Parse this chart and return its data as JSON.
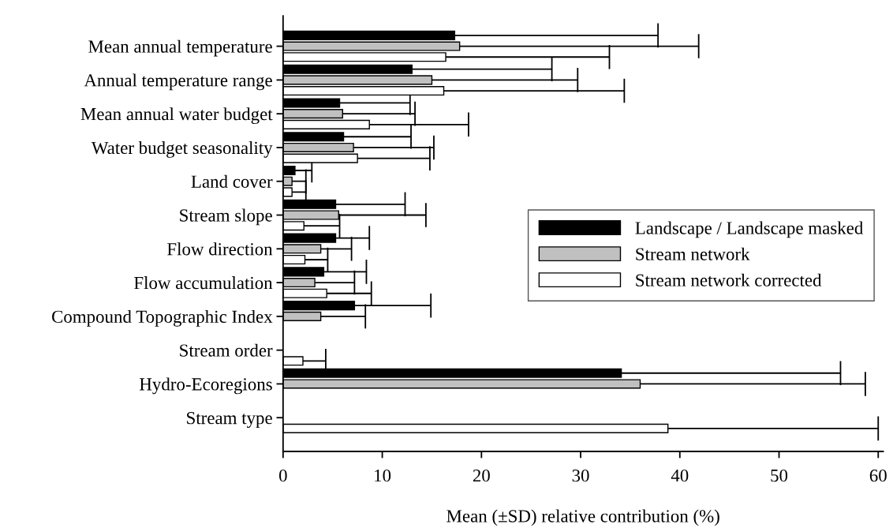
{
  "chart_data": {
    "type": "bar",
    "orientation": "horizontal",
    "xlabel": "Mean (±SD) relative contribution (%)",
    "categories": [
      "Mean annual temperature",
      "Annual temperature range",
      "Mean annual water budget",
      "Water budget seasonality",
      "Land cover",
      "Stream slope",
      "Flow direction",
      "Flow accumulation",
      "Compound Topographic Index",
      "Stream order",
      "Hydro-Ecoregions",
      "Stream type"
    ],
    "series": [
      {
        "name": "Landscape / Landscape masked",
        "color": "#000000",
        "values": [
          17.3,
          13.0,
          5.7,
          6.1,
          1.2,
          5.3,
          5.3,
          4.1,
          7.2,
          null,
          34.1,
          null
        ],
        "errors": [
          [
            17.3,
            37.8
          ],
          [
            13.0,
            27.1
          ],
          [
            5.7,
            12.8
          ],
          [
            6.1,
            12.9
          ],
          [
            1.2,
            2.9
          ],
          [
            5.3,
            12.3
          ],
          [
            5.3,
            8.7
          ],
          [
            4.1,
            8.4
          ],
          [
            7.2,
            14.9
          ],
          null,
          [
            34.1,
            56.2
          ],
          null
        ]
      },
      {
        "name": "Stream network",
        "color": "#c0c0c0",
        "values": [
          17.8,
          15.0,
          6.0,
          7.1,
          0.9,
          5.6,
          3.8,
          3.2,
          3.8,
          null,
          36.0,
          null
        ],
        "errors": [
          [
            17.8,
            41.9
          ],
          [
            15.0,
            29.7
          ],
          [
            6.0,
            13.3
          ],
          [
            7.1,
            15.2
          ],
          [
            0.9,
            2.3
          ],
          [
            5.6,
            14.4
          ],
          [
            3.8,
            6.9
          ],
          [
            3.2,
            7.2
          ],
          [
            3.8,
            8.3
          ],
          null,
          [
            36.0,
            58.7
          ],
          null
        ]
      },
      {
        "name": "Stream network corrected",
        "color": "#ffffff",
        "values": [
          16.4,
          16.2,
          8.7,
          7.5,
          0.9,
          2.1,
          2.2,
          4.4,
          null,
          2.0,
          null,
          38.8
        ],
        "errors": [
          [
            16.4,
            32.9
          ],
          [
            16.2,
            34.4
          ],
          [
            8.7,
            18.7
          ],
          [
            7.5,
            14.8
          ],
          [
            0.9,
            2.3
          ],
          [
            2.1,
            5.7
          ],
          [
            2.2,
            4.5
          ],
          [
            4.4,
            8.9
          ],
          null,
          [
            2.0,
            4.3
          ],
          null,
          [
            38.8,
            60.0
          ]
        ]
      }
    ],
    "xlim": [
      0,
      60.5
    ],
    "xticks": [
      0,
      10,
      20,
      30,
      40,
      50,
      60
    ],
    "grid": false,
    "legend": "right"
  }
}
